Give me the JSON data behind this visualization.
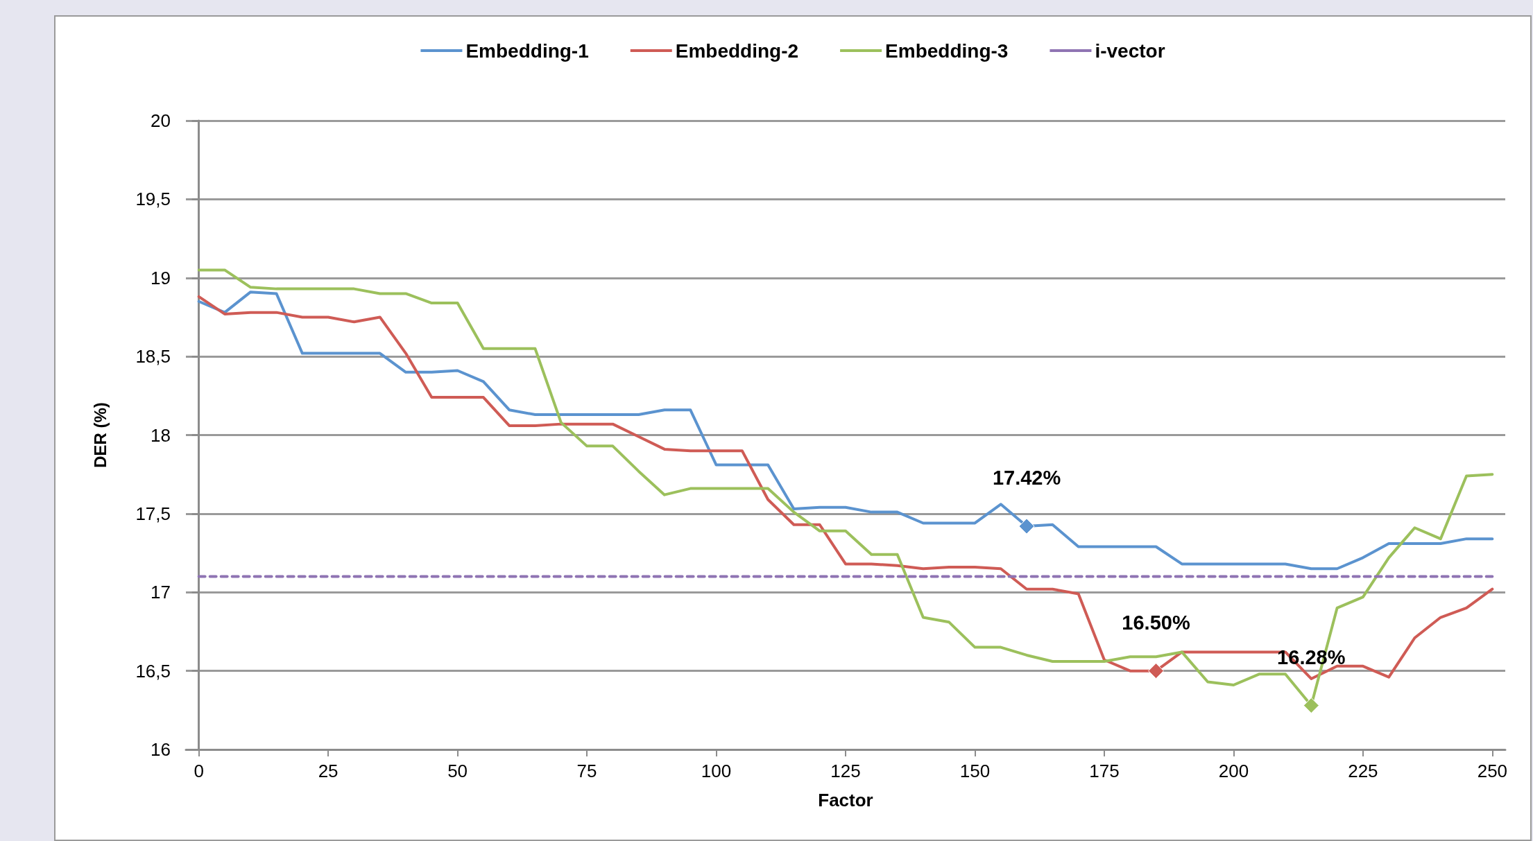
{
  "chart_data": {
    "type": "line",
    "xlabel": "Factor",
    "ylabel": "DER (%)",
    "x": [
      0,
      5,
      10,
      15,
      20,
      25,
      30,
      35,
      40,
      45,
      50,
      55,
      60,
      65,
      70,
      75,
      80,
      85,
      90,
      95,
      100,
      105,
      110,
      115,
      120,
      125,
      130,
      135,
      140,
      145,
      150,
      155,
      160,
      165,
      170,
      175,
      180,
      185,
      190,
      195,
      200,
      205,
      210,
      215,
      220,
      225,
      230,
      235,
      240,
      245,
      250
    ],
    "series": [
      {
        "name": "Embedding-1",
        "color": "#5b93cf",
        "line_style": "solid",
        "values": [
          18.85,
          18.78,
          18.91,
          18.9,
          18.52,
          18.52,
          18.52,
          18.52,
          18.4,
          18.4,
          18.41,
          18.34,
          18.16,
          18.13,
          18.13,
          18.13,
          18.13,
          18.13,
          18.16,
          18.16,
          17.81,
          17.81,
          17.81,
          17.53,
          17.54,
          17.54,
          17.51,
          17.51,
          17.44,
          17.44,
          17.44,
          17.56,
          17.42,
          17.43,
          17.29,
          17.29,
          17.29,
          17.29,
          17.18,
          17.18,
          17.18,
          17.18,
          17.18,
          17.15,
          17.15,
          17.22,
          17.31,
          17.31,
          17.31,
          17.34,
          17.34
        ]
      },
      {
        "name": "Embedding-2",
        "color": "#cf5b55",
        "line_style": "solid",
        "values": [
          18.88,
          18.77,
          18.78,
          18.78,
          18.75,
          18.75,
          18.72,
          18.75,
          18.52,
          18.24,
          18.24,
          18.24,
          18.06,
          18.06,
          18.07,
          18.07,
          18.07,
          17.99,
          17.91,
          17.9,
          17.9,
          17.9,
          17.59,
          17.43,
          17.43,
          17.18,
          17.18,
          17.17,
          17.15,
          17.16,
          17.16,
          17.15,
          17.02,
          17.02,
          16.99,
          16.57,
          16.5,
          16.5,
          16.62,
          16.62,
          16.62,
          16.62,
          16.62,
          16.45,
          16.53,
          16.53,
          16.46,
          16.71,
          16.84,
          16.9,
          17.02
        ]
      },
      {
        "name": "Embedding-3",
        "color": "#9cc05c",
        "line_style": "solid",
        "values": [
          19.05,
          19.05,
          18.94,
          18.93,
          18.93,
          18.93,
          18.93,
          18.9,
          18.9,
          18.84,
          18.84,
          18.55,
          18.55,
          18.55,
          18.08,
          17.93,
          17.93,
          17.77,
          17.62,
          17.66,
          17.66,
          17.66,
          17.66,
          17.51,
          17.39,
          17.39,
          17.24,
          17.24,
          16.84,
          16.81,
          16.65,
          16.65,
          16.6,
          16.56,
          16.56,
          16.56,
          16.59,
          16.59,
          16.62,
          16.43,
          16.41,
          16.48,
          16.48,
          16.28,
          16.9,
          16.97,
          17.22,
          17.41,
          17.34,
          17.74,
          17.75
        ]
      },
      {
        "name": "i-vector",
        "color": "#8f74b3",
        "line_style": "dashed",
        "values": [
          17.1,
          17.1,
          17.1,
          17.1,
          17.1,
          17.1,
          17.1,
          17.1,
          17.1,
          17.1,
          17.1,
          17.1,
          17.1,
          17.1,
          17.1,
          17.1,
          17.1,
          17.1,
          17.1,
          17.1,
          17.1,
          17.1,
          17.1,
          17.1,
          17.1,
          17.1,
          17.1,
          17.1,
          17.1,
          17.1,
          17.1,
          17.1,
          17.1,
          17.1,
          17.1,
          17.1,
          17.1,
          17.1,
          17.1,
          17.1,
          17.1,
          17.1,
          17.1,
          17.1,
          17.1,
          17.1,
          17.1,
          17.1,
          17.1,
          17.1,
          17.1
        ]
      }
    ],
    "annotations": [
      {
        "text": "17.42%",
        "x": 160,
        "y": 17.42
      },
      {
        "text": "16.50%",
        "x": 185,
        "y": 16.5
      },
      {
        "text": "16.28%",
        "x": 215,
        "y": 16.28
      }
    ],
    "xlim": [
      -2.5,
      252.5
    ],
    "xticks": [
      0,
      25,
      50,
      75,
      100,
      125,
      150,
      175,
      200,
      225,
      250
    ],
    "ylim": [
      16,
      20
    ],
    "yticks": [
      16,
      {
        "value": 16.5,
        "label": "16,5"
      },
      17,
      {
        "value": 17.5,
        "label": "17,5"
      },
      18,
      {
        "value": 18.5,
        "label": "18,5"
      },
      19,
      {
        "value": 19.5,
        "label": "19,5"
      },
      20
    ],
    "grid": "y",
    "legend": "top",
    "marker": "none"
  }
}
